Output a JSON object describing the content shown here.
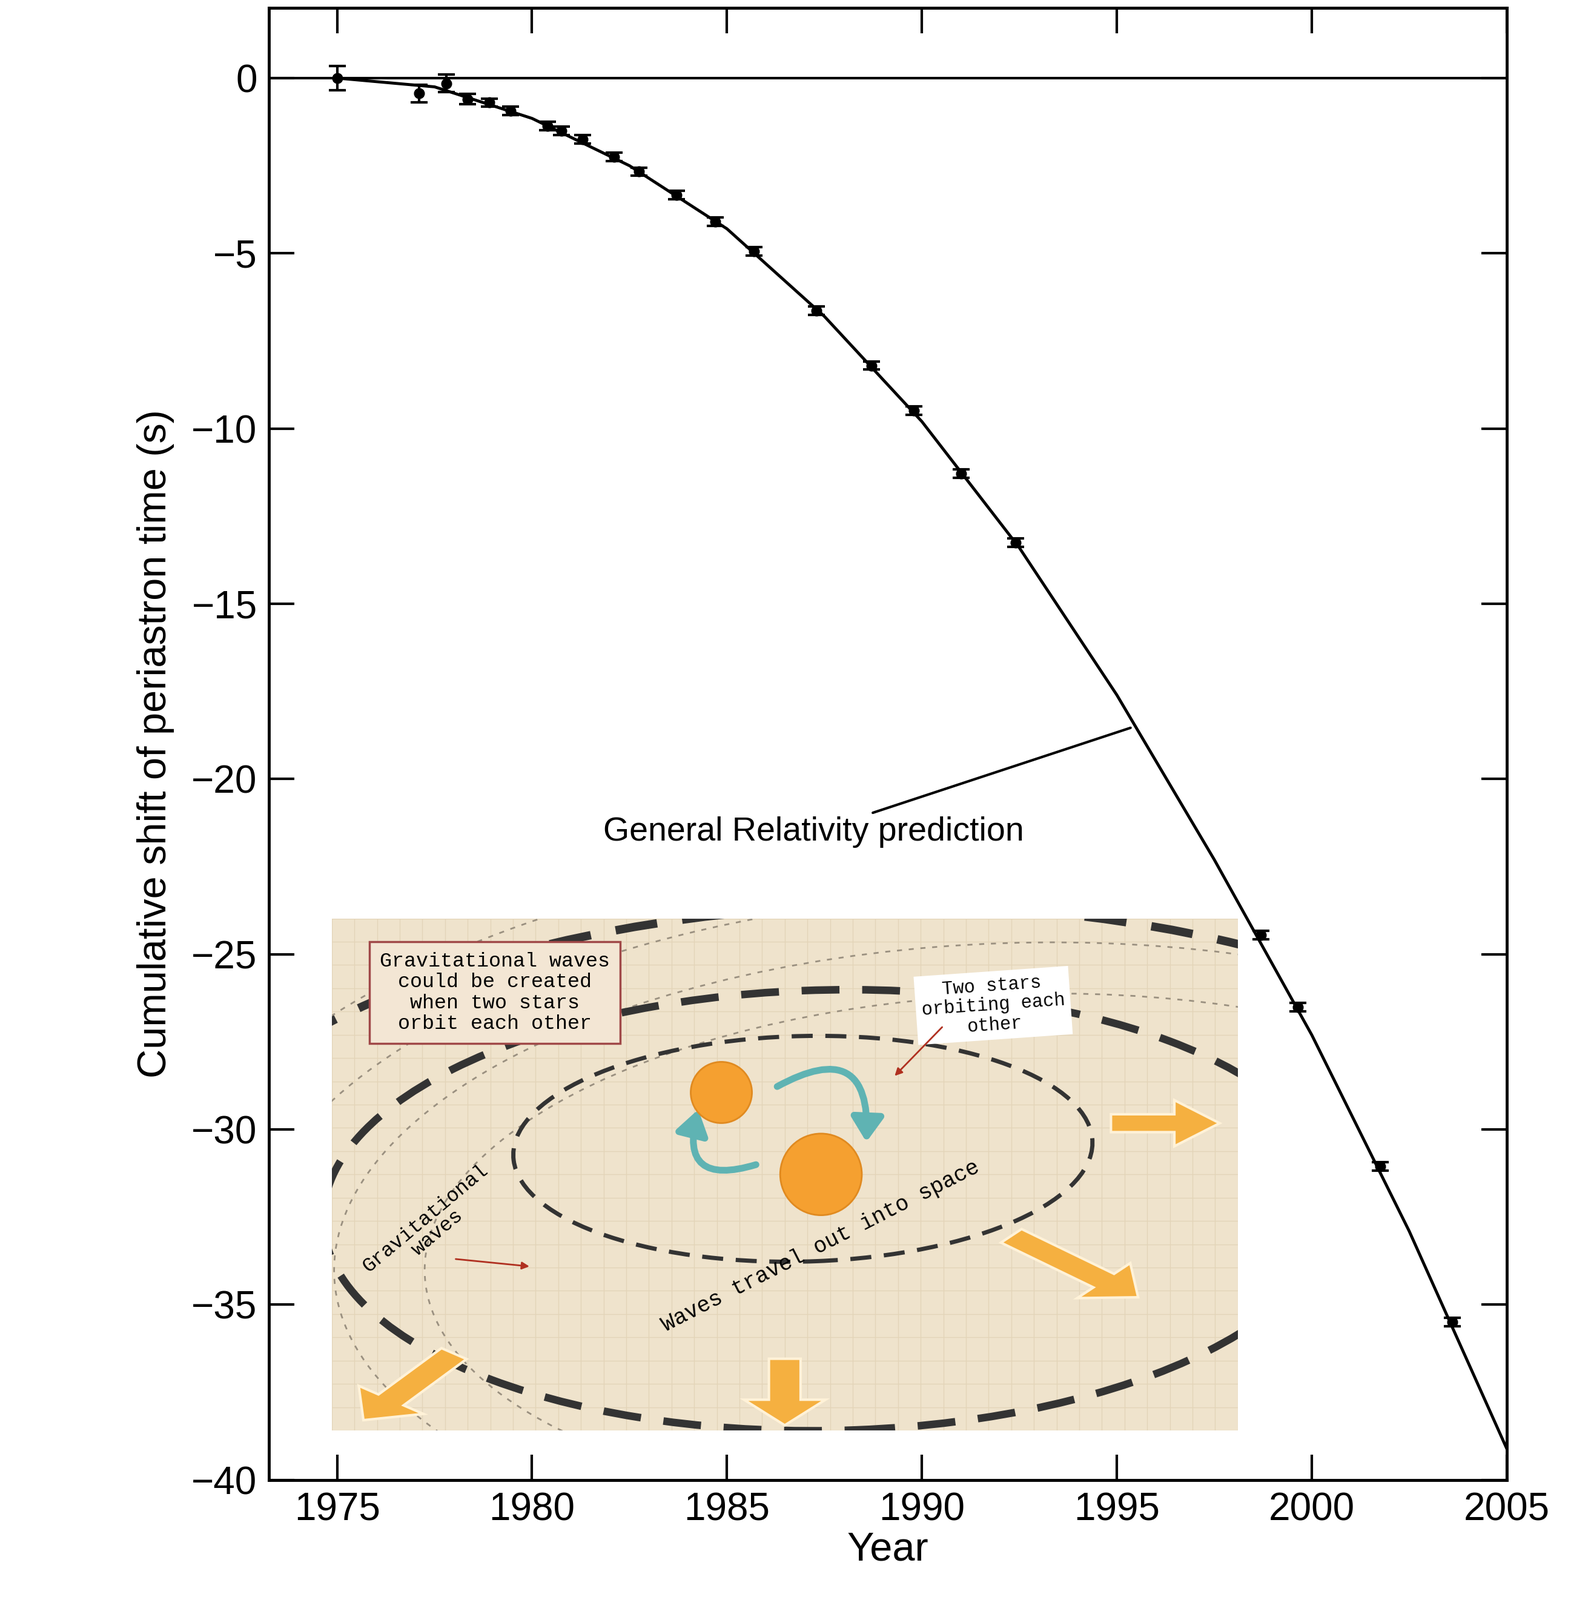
{
  "chart_data": {
    "type": "scatter",
    "xlabel": "Year",
    "ylabel": "Cumulative shift of periastron time (s)",
    "xlim": [
      1973.25,
      2005
    ],
    "ylim": [
      -40,
      2
    ],
    "xticks": [
      1975,
      1980,
      1985,
      1990,
      1995,
      2000,
      2005
    ],
    "yticks": [
      -40,
      -35,
      -30,
      -25,
      -20,
      -15,
      -10,
      -5,
      0
    ],
    "tick_labels": true,
    "reference_line": 0,
    "series": [
      {
        "type": "scatter",
        "color": "#000000",
        "marker": "o",
        "x": [
          1975.0,
          1977.1,
          1977.8,
          1978.35,
          1978.9,
          1979.45,
          1980.4,
          1980.75,
          1981.3,
          1982.1,
          1982.75,
          1983.7,
          1984.7,
          1985.7,
          1987.3,
          1988.7,
          1989.8,
          1991.0,
          1992.4,
          1998.7,
          1999.65,
          2001.75,
          2003.6
        ],
        "values": [
          0.0,
          -0.44,
          -0.15,
          -0.6,
          -0.7,
          -0.93,
          -1.37,
          -1.5,
          -1.75,
          -2.24,
          -2.67,
          -3.34,
          -4.1,
          -4.94,
          -6.63,
          -8.2,
          -9.48,
          -11.28,
          -13.26,
          -24.45,
          -26.5,
          -31.05,
          -35.5
        ],
        "errors": [
          0.35,
          0.25,
          0.25,
          0.15,
          0.12,
          0.12,
          0.12,
          0.12,
          0.12,
          0.12,
          0.12,
          0.12,
          0.12,
          0.12,
          0.12,
          0.12,
          0.12,
          0.12,
          0.12,
          0.12,
          0.12,
          0.12,
          0.12
        ]
      },
      {
        "type": "line",
        "color": "#000000",
        "line_style": "solid",
        "annotation": "General Relativity prediction",
        "x": [
          1975,
          1977.5,
          1980,
          1982.5,
          1985,
          1987.5,
          1990,
          1992.5,
          1995,
          1997.5,
          2000,
          2002.5,
          2005
        ],
        "values": [
          0.0,
          -0.25,
          -1.15,
          -2.5,
          -4.3,
          -6.8,
          -9.8,
          -13.4,
          -17.6,
          -22.3,
          -27.3,
          -32.9,
          -39.1
        ]
      }
    ]
  },
  "illustration": {
    "box_text": "Gravitational waves\ncould be created\nwhen two stars\norbit each other",
    "stars_label": "Two stars\norbiting each\nother",
    "waves_label": "Gravitational\nwaves",
    "travel_label": "Waves travel out into space"
  }
}
